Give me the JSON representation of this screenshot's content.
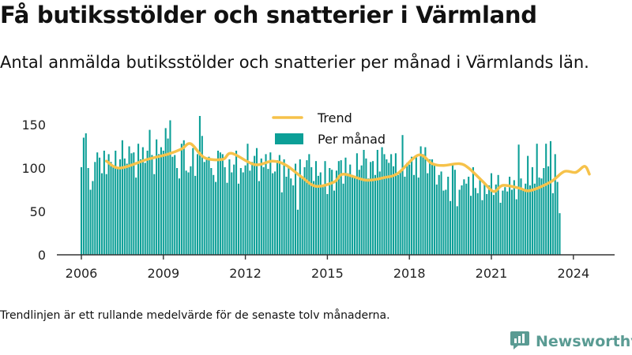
{
  "header": {
    "title": "Få butiksstölder och snatterier i Värmland",
    "subtitle": "Antal anmälda butiksstölder och snatterier per månad i Värmlands län."
  },
  "footer": {
    "note": "Trendlinjen är ett rullande medelvärde för de senaste tolv månaderna.",
    "brand": "Newsworthy"
  },
  "colors": {
    "bars": "#0c9f97",
    "trend": "#f6c24a",
    "axis": "#333333",
    "brand": "#5a9b93"
  },
  "chart_data": {
    "type": "bar",
    "title": "",
    "xlabel": "",
    "ylabel": "",
    "ylim": [
      0,
      160
    ],
    "yticks": [
      0,
      50,
      100,
      150
    ],
    "xticks": [
      {
        "label": "2006",
        "x": 2006
      },
      {
        "label": "2009",
        "x": 2009
      },
      {
        "label": "2012",
        "x": 2012
      },
      {
        "label": "2015",
        "x": 2015
      },
      {
        "label": "2018",
        "x": 2018
      },
      {
        "label": "2021",
        "x": 2021
      },
      {
        "label": "2024",
        "x": 2024
      }
    ],
    "grid": false,
    "legend_position": "top",
    "legend": [
      "Trend",
      "Per månad"
    ],
    "start": "2006-01",
    "series": [
      {
        "name": "Per månad",
        "type": "bar",
        "values": [
          101,
          135,
          140,
          100,
          75,
          85,
          107,
          118,
          112,
          94,
          120,
          93,
          116,
          107,
          102,
          120,
          99,
          110,
          132,
          111,
          105,
          125,
          117,
          118,
          89,
          128,
          110,
          124,
          106,
          120,
          144,
          115,
          93,
          133,
          116,
          124,
          120,
          146,
          134,
          155,
          113,
          115,
          100,
          88,
          128,
          132,
          97,
          95,
          102,
          123,
          91,
          116,
          160,
          137,
          107,
          110,
          113,
          100,
          92,
          84,
          120,
          118,
          116,
          101,
          83,
          110,
          95,
          104,
          120,
          82,
          100,
          95,
          103,
          128,
          97,
          107,
          114,
          123,
          85,
          111,
          101,
          116,
          99,
          118,
          94,
          96,
          109,
          115,
          72,
          110,
          90,
          100,
          88,
          80,
          105,
          52,
          110,
          90,
          101,
          109,
          116,
          101,
          85,
          108,
          91,
          95,
          78,
          108,
          70,
          100,
          98,
          74,
          97,
          108,
          109,
          82,
          112,
          94,
          104,
          92,
          91,
          117,
          98,
          103,
          130,
          111,
          88,
          107,
          108,
          92,
          142,
          96,
          124,
          116,
          110,
          106,
          116,
          102,
          117,
          92,
          95,
          138,
          90,
          106,
          104,
          113,
          92,
          115,
          89,
          125,
          116,
          124,
          94,
          110,
          110,
          103,
          81,
          92,
          96,
          74,
          75,
          90,
          62,
          104,
          98,
          56,
          75,
          80,
          87,
          82,
          90,
          68,
          101,
          77,
          71,
          89,
          63,
          83,
          70,
          80,
          94,
          69,
          81,
          92,
          60,
          74,
          78,
          73,
          90,
          75,
          86,
          64,
          127,
          88,
          75,
          82,
          114,
          80,
          101,
          82,
          128,
          89,
          88,
          100,
          128,
          102,
          131,
          71,
          116,
          84,
          48
        ]
      },
      {
        "name": "Trend",
        "type": "line",
        "start": "2006-12",
        "anchors": [
          [
            "2006-12",
            108
          ],
          [
            "2007-06",
            100
          ],
          [
            "2008-06",
            110
          ],
          [
            "2009-03",
            116
          ],
          [
            "2009-09",
            122
          ],
          [
            "2010-01",
            128
          ],
          [
            "2010-07",
            112
          ],
          [
            "2011-03",
            110
          ],
          [
            "2011-07",
            117
          ],
          [
            "2012-05",
            104
          ],
          [
            "2013-01",
            108
          ],
          [
            "2013-07",
            103
          ],
          [
            "2014-02",
            89
          ],
          [
            "2014-08",
            79
          ],
          [
            "2015-04",
            84
          ],
          [
            "2015-08",
            93
          ],
          [
            "2016-06",
            86
          ],
          [
            "2017-02",
            89
          ],
          [
            "2017-08",
            94
          ],
          [
            "2018-05",
            115
          ],
          [
            "2018-11",
            105
          ],
          [
            "2019-04",
            103
          ],
          [
            "2019-11",
            105
          ],
          [
            "2020-03",
            100
          ],
          [
            "2020-09",
            85
          ],
          [
            "2021-02",
            73
          ],
          [
            "2021-06",
            80
          ],
          [
            "2022-01",
            77
          ],
          [
            "2022-06",
            74
          ],
          [
            "2023-03",
            84
          ],
          [
            "2023-09",
            96
          ],
          [
            "2024-02",
            95
          ],
          [
            "2024-06",
            102
          ],
          [
            "2024-08",
            93
          ]
        ]
      }
    ]
  }
}
